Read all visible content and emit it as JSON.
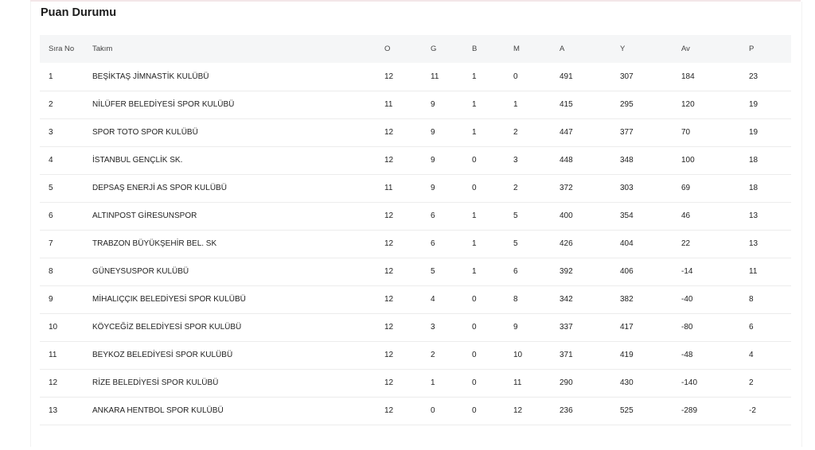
{
  "title": "Puan Durumu",
  "columns": [
    "Sıra No",
    "Takım",
    "O",
    "G",
    "B",
    "M",
    "A",
    "Y",
    "Av",
    "P"
  ],
  "rows": [
    [
      "1",
      "BEŞİKTAŞ JİMNASTİK KULÜBÜ",
      "12",
      "11",
      "1",
      "0",
      "491",
      "307",
      "184",
      "23"
    ],
    [
      "2",
      "NİLÜFER BELEDİYESİ SPOR KULÜBÜ",
      "11",
      "9",
      "1",
      "1",
      "415",
      "295",
      "120",
      "19"
    ],
    [
      "3",
      "SPOR TOTO SPOR KULÜBÜ",
      "12",
      "9",
      "1",
      "2",
      "447",
      "377",
      "70",
      "19"
    ],
    [
      "4",
      "İSTANBUL GENÇLİK SK.",
      "12",
      "9",
      "0",
      "3",
      "448",
      "348",
      "100",
      "18"
    ],
    [
      "5",
      "DEPSAŞ ENERJİ AS SPOR KULÜBÜ",
      "11",
      "9",
      "0",
      "2",
      "372",
      "303",
      "69",
      "18"
    ],
    [
      "6",
      "ALTINPOST GİRESUNSPOR",
      "12",
      "6",
      "1",
      "5",
      "400",
      "354",
      "46",
      "13"
    ],
    [
      "7",
      "TRABZON BÜYÜKŞEHİR BEL. SK",
      "12",
      "6",
      "1",
      "5",
      "426",
      "404",
      "22",
      "13"
    ],
    [
      "8",
      "GÜNEYSUSPOR KULÜBÜ",
      "12",
      "5",
      "1",
      "6",
      "392",
      "406",
      "-14",
      "11"
    ],
    [
      "9",
      "MİHALIÇÇIK BELEDİYESİ SPOR KULÜBÜ",
      "12",
      "4",
      "0",
      "8",
      "342",
      "382",
      "-40",
      "8"
    ],
    [
      "10",
      "KÖYCEĞİZ BELEDİYESİ SPOR KULÜBÜ",
      "12",
      "3",
      "0",
      "9",
      "337",
      "417",
      "-80",
      "6"
    ],
    [
      "11",
      "BEYKOZ BELEDİYESİ SPOR KULÜBÜ",
      "12",
      "2",
      "0",
      "10",
      "371",
      "419",
      "-48",
      "4"
    ],
    [
      "12",
      "RİZE BELEDİYESİ SPOR KULÜBÜ",
      "12",
      "1",
      "0",
      "11",
      "290",
      "430",
      "-140",
      "2"
    ],
    [
      "13",
      "ANKARA HENTBOL SPOR KULÜBÜ",
      "12",
      "0",
      "0",
      "12",
      "236",
      "525",
      "-289",
      "-2"
    ]
  ]
}
